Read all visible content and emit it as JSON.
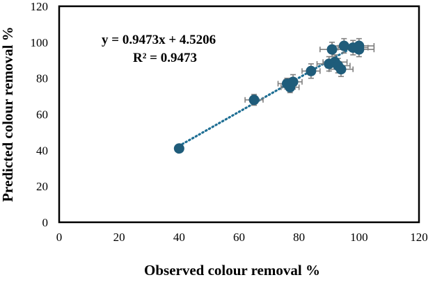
{
  "chart_data": {
    "type": "scatter",
    "xlabel": "Observed colour removal %",
    "ylabel": "Predicted colour removal %",
    "xlim": [
      0,
      120
    ],
    "ylim": [
      0,
      120
    ],
    "x_ticks": [
      "0",
      "20",
      "40",
      "60",
      "80",
      "100",
      "120"
    ],
    "y_ticks": [
      "0",
      "20",
      "40",
      "60",
      "80",
      "100",
      "120"
    ],
    "grid": false,
    "marker_color": "#1f5c7a",
    "errorbar_color": "#7f7f7f",
    "trendline_color": "#1f6f94",
    "trendline": {
      "equation": "y = 0.9473x + 4.5206",
      "r_squared": "R² = 0.9473",
      "slope": 0.9473,
      "intercept": 4.5206,
      "x_range": [
        40,
        100
      ]
    },
    "points": [
      {
        "x": 40,
        "y": 41,
        "xerr": 0.8,
        "yerr": 0.8
      },
      {
        "x": 65,
        "y": 68,
        "xerr": 3,
        "yerr": 3
      },
      {
        "x": 76,
        "y": 77,
        "xerr": 3,
        "yerr": 3
      },
      {
        "x": 77,
        "y": 75,
        "xerr": 3,
        "yerr": 3
      },
      {
        "x": 78,
        "y": 78,
        "xerr": 3,
        "yerr": 4
      },
      {
        "x": 84,
        "y": 84,
        "xerr": 3,
        "yerr": 4
      },
      {
        "x": 90,
        "y": 88,
        "xerr": 4,
        "yerr": 4
      },
      {
        "x": 91,
        "y": 96,
        "xerr": 4,
        "yerr": 4
      },
      {
        "x": 92,
        "y": 89,
        "xerr": 4,
        "yerr": 4
      },
      {
        "x": 93,
        "y": 87,
        "xerr": 4,
        "yerr": 4
      },
      {
        "x": 94,
        "y": 85,
        "xerr": 4,
        "yerr": 4
      },
      {
        "x": 95,
        "y": 98,
        "xerr": 4,
        "yerr": 4
      },
      {
        "x": 98,
        "y": 97,
        "xerr": 5,
        "yerr": 4
      },
      {
        "x": 100,
        "y": 98,
        "xerr": 5,
        "yerr": 4
      },
      {
        "x": 100,
        "y": 96,
        "xerr": 5,
        "yerr": 4
      }
    ]
  }
}
